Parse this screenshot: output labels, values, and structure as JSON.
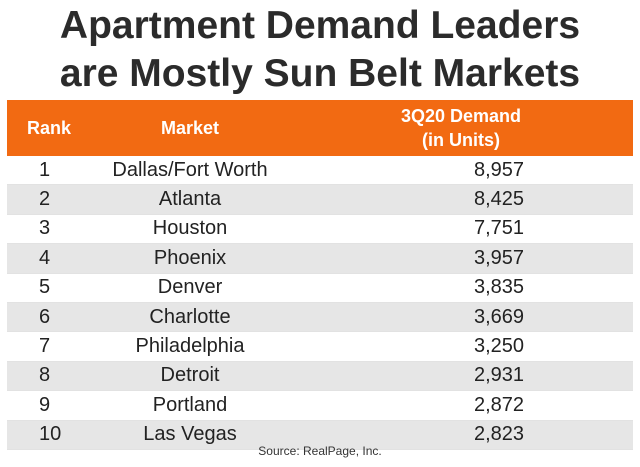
{
  "title": {
    "line1": "Apartment Demand Leaders",
    "line2": "are Mostly Sun Belt Markets"
  },
  "source": "Source: RealPage, Inc.",
  "colors": {
    "header_bg": "#f26a12",
    "header_text": "#ffffff",
    "row_alt_bg": "#e6e6e6"
  },
  "chart_data": {
    "type": "table",
    "columns": [
      "Rank",
      "Market",
      "3Q20 Demand",
      "(in Units)"
    ],
    "rows": [
      {
        "rank": "1",
        "market": "Dallas/Fort Worth",
        "demand": "8,957"
      },
      {
        "rank": "2",
        "market": "Atlanta",
        "demand": "8,425"
      },
      {
        "rank": "3",
        "market": "Houston",
        "demand": "7,751"
      },
      {
        "rank": "4",
        "market": "Phoenix",
        "demand": "3,957"
      },
      {
        "rank": "5",
        "market": "Denver",
        "demand": "3,835"
      },
      {
        "rank": "6",
        "market": "Charlotte",
        "demand": "3,669"
      },
      {
        "rank": "7",
        "market": "Philadelphia",
        "demand": "3,250"
      },
      {
        "rank": "8",
        "market": "Detroit",
        "demand": "2,931"
      },
      {
        "rank": "9",
        "market": "Portland",
        "demand": "2,872"
      },
      {
        "rank": "10",
        "market": "Las Vegas",
        "demand": "2,823"
      }
    ]
  }
}
